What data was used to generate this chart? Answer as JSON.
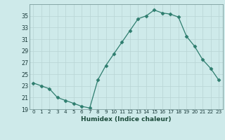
{
  "x": [
    0,
    1,
    2,
    3,
    4,
    5,
    6,
    7,
    8,
    9,
    10,
    11,
    12,
    13,
    14,
    15,
    16,
    17,
    18,
    19,
    20,
    21,
    22,
    23
  ],
  "y": [
    23.5,
    23.0,
    22.5,
    21.0,
    20.5,
    20.0,
    19.5,
    19.2,
    24.0,
    26.5,
    28.5,
    30.5,
    32.5,
    34.5,
    35.0,
    36.0,
    35.5,
    35.3,
    34.8,
    31.5,
    29.8,
    27.5,
    26.0,
    24.0
  ],
  "line_color": "#2e7d6e",
  "marker": "D",
  "marker_size": 2.5,
  "bg_color": "#ceeaea",
  "grid_major_color": "#b8d4d4",
  "grid_minor_color": "#d4e8e8",
  "xlabel": "Humidex (Indice chaleur)",
  "ylim": [
    19,
    37
  ],
  "xlim": [
    -0.5,
    23.5
  ],
  "yticks": [
    19,
    21,
    23,
    25,
    27,
    29,
    31,
    33,
    35
  ],
  "xticks": [
    0,
    1,
    2,
    3,
    4,
    5,
    6,
    7,
    8,
    9,
    10,
    11,
    12,
    13,
    14,
    15,
    16,
    17,
    18,
    19,
    20,
    21,
    22,
    23
  ]
}
